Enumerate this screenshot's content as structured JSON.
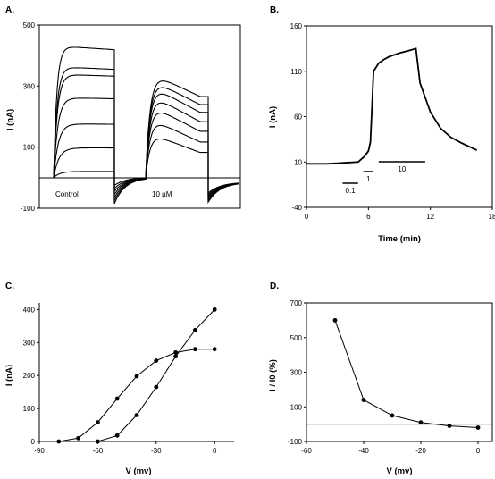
{
  "chart_data": [
    {
      "panel": "A.",
      "type": "line",
      "ylabel": "I (nA)",
      "yticks": [
        -100,
        100,
        300,
        500
      ],
      "ylim": [
        -100,
        500
      ],
      "annotations": [
        "Control",
        "10 µM"
      ],
      "series": [
        {
          "name": "Control",
          "steady_values": [
            20,
            95,
            170,
            250,
            320,
            340,
            400
          ]
        },
        {
          "name": "10 µM",
          "peak_values": [
            150,
            200,
            245,
            280,
            310,
            330,
            350
          ]
        }
      ]
    },
    {
      "panel": "B.",
      "type": "line",
      "xlabel": "Time (min)",
      "ylabel": "I (nA)",
      "xticks": [
        0,
        6,
        12,
        18
      ],
      "yticks": [
        -40,
        10,
        60,
        110,
        160
      ],
      "xlim": [
        0,
        18
      ],
      "ylim": [
        -40,
        160
      ],
      "x": [
        0,
        2,
        3.5,
        5,
        5.6,
        6,
        6.2,
        6.5,
        7,
        7.5,
        8,
        9,
        10,
        10.6,
        11,
        12,
        13,
        14,
        15,
        16.5
      ],
      "y": [
        8,
        8,
        9,
        10,
        16,
        22,
        32,
        110,
        119,
        123,
        126,
        130,
        133,
        135,
        97,
        65,
        47,
        37,
        31,
        23
      ],
      "concentration_bars": [
        {
          "label": "0.1",
          "x_start": 3.5,
          "x_end": 5
        },
        {
          "label": "1",
          "x_start": 5.5,
          "x_end": 6.5
        },
        {
          "label": "10",
          "x_start": 7,
          "x_end": 11.5
        }
      ]
    },
    {
      "panel": "C.",
      "type": "line",
      "xlabel": "V (mv)",
      "ylabel": "I (nA)",
      "xticks": [
        -90,
        -60,
        -30,
        0
      ],
      "yticks": [
        0,
        100,
        200,
        300,
        400
      ],
      "xlim": [
        -90,
        10
      ],
      "ylim": [
        0,
        420
      ],
      "series": [
        {
          "name": "",
          "x": [
            -80,
            -70,
            -60,
            -50,
            -40,
            -30,
            -20,
            -10,
            0
          ],
          "y": [
            0,
            10,
            58,
            130,
            198,
            245,
            270,
            280,
            280
          ]
        },
        {
          "name": "",
          "x": [
            -60,
            -50,
            -40,
            -30,
            -20,
            -10,
            0
          ],
          "y": [
            0,
            18,
            80,
            165,
            258,
            338,
            400
          ]
        }
      ]
    },
    {
      "panel": "D.",
      "type": "line",
      "xlabel": "V (mv)",
      "ylabel": "I / I0 (%)",
      "xticks": [
        -60,
        -40,
        -20,
        0
      ],
      "yticks": [
        -100,
        100,
        300,
        500,
        700
      ],
      "xlim": [
        -60,
        5
      ],
      "ylim": [
        -100,
        700
      ],
      "x": [
        -50,
        -40,
        -30,
        -20,
        -10,
        0
      ],
      "y": [
        600,
        140,
        50,
        10,
        -10,
        -20
      ],
      "reference_line_y": 0
    }
  ]
}
